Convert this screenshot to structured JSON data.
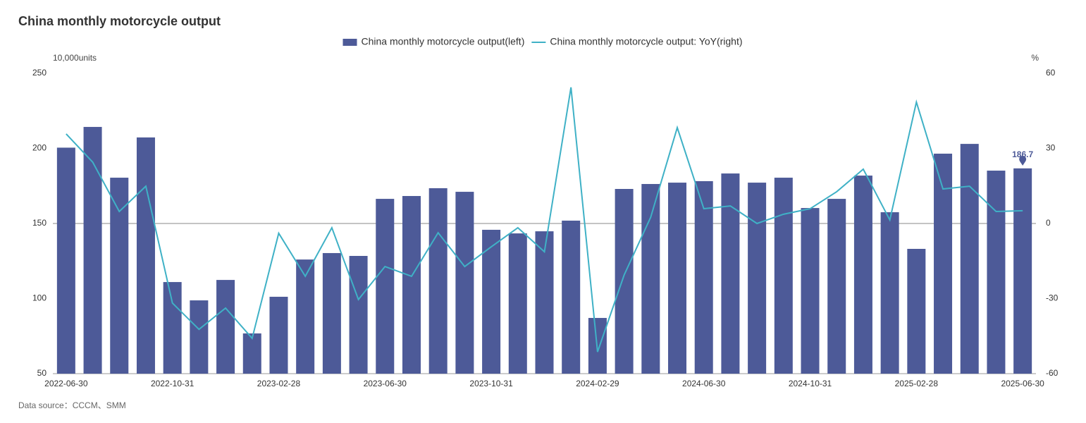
{
  "chart_data": {
    "type": "bar",
    "title": "China monthly motorcycle output",
    "y_label": "10,000units",
    "y2_label": "%",
    "source": "Data source：CCCM、SMM",
    "categories": [
      "2022-06-30",
      null,
      null,
      null,
      "2022-10-31",
      null,
      null,
      null,
      "2023-02-28",
      null,
      null,
      null,
      "2023-06-30",
      null,
      null,
      null,
      "2023-10-31",
      null,
      null,
      null,
      "2024-02-29",
      null,
      null,
      null,
      "2024-06-30",
      null,
      null,
      null,
      "2024-10-31",
      null,
      null,
      null,
      "2025-02-28",
      null,
      null,
      null,
      "2025-06-30"
    ],
    "series": [
      {
        "name": "China monthly motorcycle output(left)",
        "color": "#4d5a98",
        "type": "bar",
        "values": [
          200.5,
          214.3,
          180.5,
          207.3,
          111,
          98.8,
          112.4,
          76.8,
          101.2,
          126,
          130.3,
          128.4,
          166.4,
          168.3,
          173.5,
          171.1,
          145.8,
          143.4,
          144.8,
          151.9,
          87.1,
          173,
          176.3,
          177.2,
          178.2,
          183.3,
          177.2,
          180.5,
          160.3,
          166.4,
          181.9,
          157.5,
          133.1,
          196.5,
          203,
          185.2,
          186.7
        ]
      },
      {
        "name": "China monthly motorcycle output: YoY(right)",
        "color": "#3fb1c6",
        "type": "line",
        "axis": "y2",
        "values": [
          35.8,
          24.5,
          4.8,
          14.9,
          -31.8,
          -42.3,
          -33.8,
          -45.9,
          -3.9,
          -21.1,
          -1.7,
          -30.4,
          -17.2,
          -21.1,
          -3.7,
          -17.2,
          -9.3,
          -1.7,
          -11.3,
          54.4,
          -51.3,
          -20.6,
          2.5,
          38.3,
          5.9,
          7,
          0,
          3.7,
          5.9,
          12.7,
          21.7,
          1.4,
          48.5,
          13.8,
          14.9,
          4.8,
          5.1
        ]
      }
    ],
    "ylim": [
      50,
      250
    ],
    "yticks": [
      50,
      100,
      150,
      200,
      250
    ],
    "y2lim": [
      -60,
      60
    ],
    "y2ticks": [
      -60,
      -30,
      0,
      30,
      60
    ],
    "legend": "top"
  }
}
